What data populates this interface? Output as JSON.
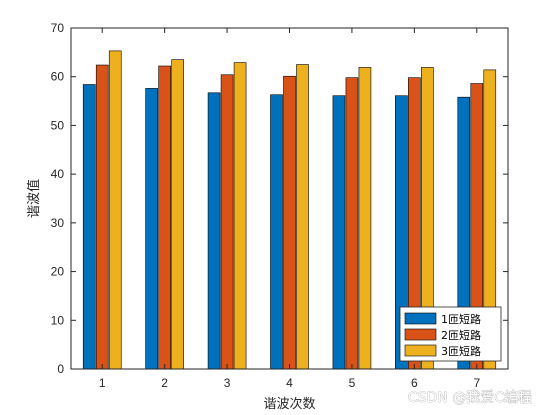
{
  "chart_data": {
    "type": "bar",
    "categories": [
      "1",
      "2",
      "3",
      "4",
      "5",
      "6",
      "7"
    ],
    "series": [
      {
        "name": "1匝短路",
        "color": "#0072BD",
        "values": [
          58.4,
          57.6,
          56.7,
          56.3,
          56.1,
          56.1,
          55.8
        ]
      },
      {
        "name": "2匝短路",
        "color": "#D95319",
        "values": [
          62.4,
          62.2,
          60.4,
          60.1,
          59.8,
          59.8,
          58.6
        ]
      },
      {
        "name": "3匝短路",
        "color": "#EDB120",
        "values": [
          65.3,
          63.5,
          62.9,
          62.5,
          61.9,
          61.9,
          61.4
        ]
      }
    ],
    "title": "",
    "xlabel": "谐波次数",
    "ylabel": "谐波值",
    "ylim": [
      0,
      70
    ],
    "yticks": [
      0,
      10,
      20,
      30,
      40,
      50,
      60,
      70
    ],
    "grid": false,
    "legend_position": "bottom-right"
  },
  "watermark": "CSDN @我爱C编程"
}
